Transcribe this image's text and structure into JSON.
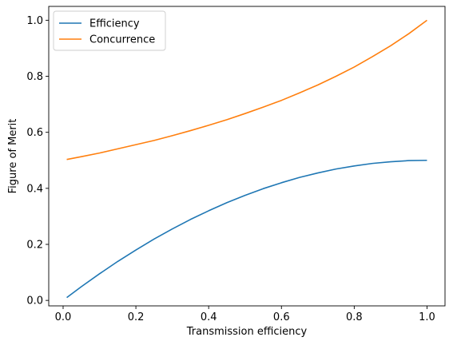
{
  "chart_data": {
    "type": "line",
    "title": "",
    "xlabel": "Transmission efficiency",
    "ylabel": "Figure of Merit",
    "xlim": [
      -0.0395,
      1.0495
    ],
    "ylim": [
      -0.0195,
      1.0495
    ],
    "xticks": [
      "0.0",
      "0.2",
      "0.4",
      "0.6",
      "0.8",
      "1.0"
    ],
    "yticks": [
      "0.0",
      "0.2",
      "0.4",
      "0.6",
      "0.8",
      "1.0"
    ],
    "grid": false,
    "legend_position": "top-left",
    "x": [
      0.01,
      0.05,
      0.1,
      0.15,
      0.2,
      0.25,
      0.3,
      0.35,
      0.4,
      0.45,
      0.5,
      0.55,
      0.6,
      0.65,
      0.7,
      0.75,
      0.8,
      0.85,
      0.9,
      0.95,
      1.0
    ],
    "series": [
      {
        "name": "Efficiency",
        "color": "#1f77b4",
        "values": [
          0.01,
          0.049,
          0.095,
          0.139,
          0.18,
          0.219,
          0.255,
          0.289,
          0.32,
          0.349,
          0.375,
          0.399,
          0.42,
          0.439,
          0.455,
          0.469,
          0.48,
          0.489,
          0.495,
          0.499,
          0.5
        ]
      },
      {
        "name": "Concurrence",
        "color": "#ff7f0e",
        "values": [
          0.503,
          0.513,
          0.526,
          0.541,
          0.556,
          0.571,
          0.588,
          0.606,
          0.625,
          0.645,
          0.667,
          0.69,
          0.714,
          0.741,
          0.769,
          0.8,
          0.833,
          0.87,
          0.909,
          0.952,
          1.0
        ]
      }
    ]
  }
}
